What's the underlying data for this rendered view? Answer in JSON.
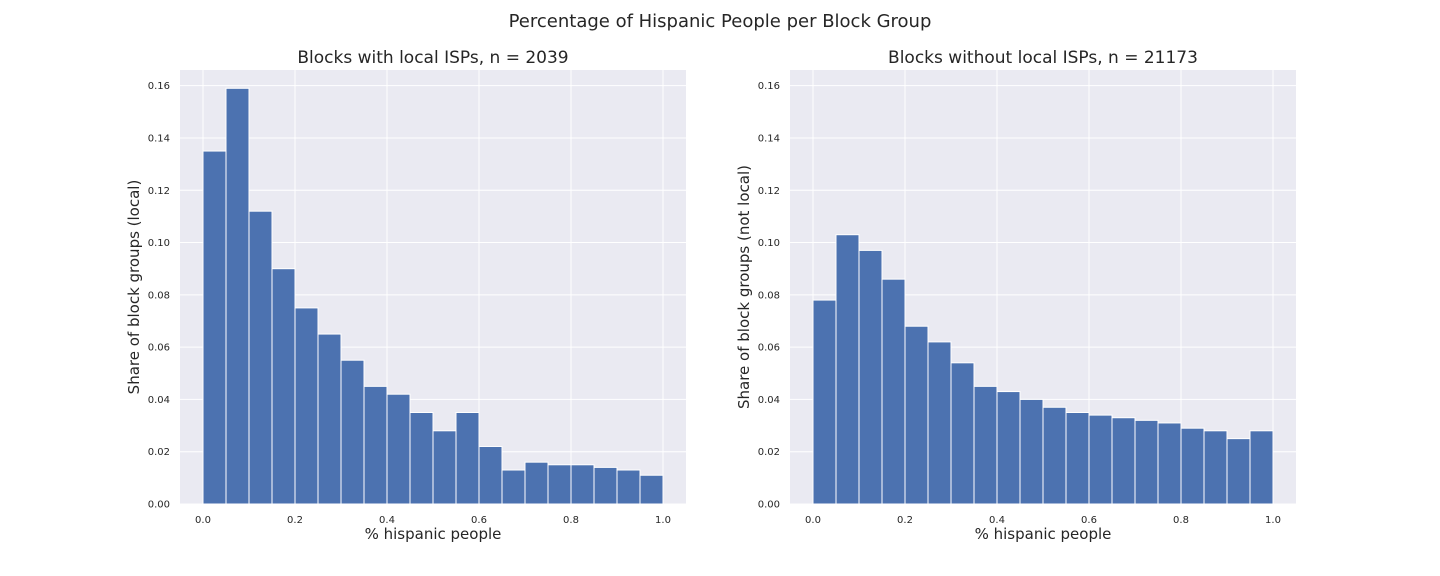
{
  "figure": {
    "title": "Percentage of Hispanic People per Block Group"
  },
  "colors": {
    "bar": "#4c72b0",
    "bar_edge": "#ffffff",
    "axes_bg": "#eaeaf2",
    "grid": "#ffffff"
  },
  "chart_data": [
    {
      "type": "bar",
      "title": "Blocks with local ISPs, n = 2039",
      "xlabel": "% hispanic people",
      "ylabel": "Share of block groups (local)",
      "xlim": [
        -0.05,
        1.05
      ],
      "ylim": [
        0,
        0.166
      ],
      "xticks": [
        "0.0",
        "0.2",
        "0.4",
        "0.6",
        "0.8",
        "1.0"
      ],
      "yticks": [
        "0.00",
        "0.02",
        "0.04",
        "0.06",
        "0.08",
        "0.10",
        "0.12",
        "0.14",
        "0.16"
      ],
      "grid": true,
      "bin_edges": [
        0,
        0.05,
        0.1,
        0.15,
        0.2,
        0.25,
        0.3,
        0.35,
        0.4,
        0.45,
        0.5,
        0.55,
        0.6,
        0.65,
        0.7,
        0.75,
        0.8,
        0.85,
        0.9,
        0.95,
        1.0
      ],
      "values": [
        0.135,
        0.159,
        0.112,
        0.09,
        0.075,
        0.065,
        0.055,
        0.045,
        0.042,
        0.035,
        0.028,
        0.035,
        0.022,
        0.013,
        0.016,
        0.015,
        0.015,
        0.014,
        0.013,
        0.011
      ]
    },
    {
      "type": "bar",
      "title": "Blocks without local ISPs, n = 21173",
      "xlabel": "% hispanic people",
      "ylabel": "Share of block groups (not local)",
      "xlim": [
        -0.05,
        1.05
      ],
      "ylim": [
        0,
        0.166
      ],
      "xticks": [
        "0.0",
        "0.2",
        "0.4",
        "0.6",
        "0.8",
        "1.0"
      ],
      "yticks": [
        "0.00",
        "0.02",
        "0.04",
        "0.06",
        "0.08",
        "0.10",
        "0.12",
        "0.14",
        "0.16"
      ],
      "grid": true,
      "bin_edges": [
        0,
        0.05,
        0.1,
        0.15,
        0.2,
        0.25,
        0.3,
        0.35,
        0.4,
        0.45,
        0.5,
        0.55,
        0.6,
        0.65,
        0.7,
        0.75,
        0.8,
        0.85,
        0.9,
        0.95,
        1.0
      ],
      "values": [
        0.078,
        0.103,
        0.097,
        0.086,
        0.068,
        0.062,
        0.054,
        0.045,
        0.043,
        0.04,
        0.037,
        0.035,
        0.034,
        0.033,
        0.032,
        0.031,
        0.029,
        0.028,
        0.025,
        0.028
      ]
    }
  ]
}
